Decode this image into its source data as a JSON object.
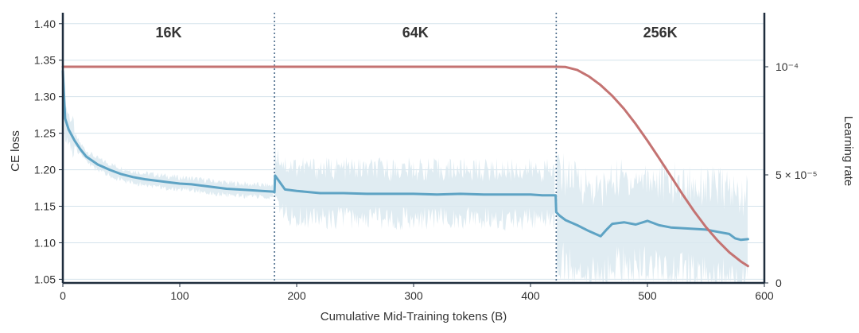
{
  "chart_data": {
    "type": "line",
    "title": "",
    "xlabel": "Cumulative Mid-Training tokens (B)",
    "ylabel": "CE loss",
    "ylabel_right": "Learning rate",
    "xlim": [
      0,
      600
    ],
    "ylim": [
      1.045,
      1.415
    ],
    "ylim_right": [
      0,
      0.000125
    ],
    "grid": "horizontal",
    "x_ticks": [
      0,
      100,
      200,
      300,
      400,
      500,
      600
    ],
    "x_tick_labels": [
      "0",
      "100",
      "200",
      "300",
      "400",
      "500",
      "600"
    ],
    "y_ticks": [
      1.05,
      1.1,
      1.15,
      1.2,
      1.25,
      1.3,
      1.35,
      1.4
    ],
    "y_tick_labels": [
      "1.05",
      "1.10",
      "1.15",
      "1.20",
      "1.25",
      "1.30",
      "1.35",
      "1.40"
    ],
    "y_right_ticks": [
      0,
      5e-05,
      0.0001
    ],
    "y_right_tick_labels": [
      "0",
      "5 × 10⁻⁵",
      "10⁻⁴"
    ],
    "phases": [
      {
        "label": "16K",
        "start": 0,
        "end": 181
      },
      {
        "label": "64K",
        "start": 181,
        "end": 422
      },
      {
        "label": "256K",
        "start": 422,
        "end": 600
      }
    ],
    "boundaries": [
      181,
      422
    ],
    "colors": {
      "loss": "#5ea3c4",
      "loss_band": "#dbe9f0",
      "lr": "#c47372",
      "boundary": "#4a6a8a",
      "frame": "#1f2d3d",
      "grid": "#d4e3ec"
    },
    "series": [
      {
        "axis": "left",
        "x": [
          0,
          2,
          5,
          10,
          15,
          20,
          30,
          40,
          50,
          60,
          70,
          80,
          90,
          100,
          110,
          120,
          130,
          140,
          150,
          160,
          170,
          180,
          181,
          181.5,
          190,
          200,
          220,
          240,
          260,
          280,
          300,
          320,
          340,
          360,
          380,
          400,
          410,
          421.5,
          422,
          425,
          430,
          440,
          450,
          460,
          465,
          470,
          480,
          490,
          500,
          510,
          520,
          530,
          540,
          550,
          560,
          570,
          575,
          580,
          586
        ],
        "values": [
          1.335,
          1.27,
          1.255,
          1.24,
          1.228,
          1.218,
          1.207,
          1.2,
          1.194,
          1.19,
          1.187,
          1.185,
          1.183,
          1.181,
          1.18,
          1.178,
          1.176,
          1.174,
          1.173,
          1.172,
          1.171,
          1.17,
          1.169,
          1.192,
          1.173,
          1.171,
          1.168,
          1.168,
          1.167,
          1.167,
          1.167,
          1.166,
          1.167,
          1.166,
          1.166,
          1.166,
          1.165,
          1.165,
          1.142,
          1.137,
          1.131,
          1.124,
          1.116,
          1.109,
          1.118,
          1.126,
          1.128,
          1.125,
          1.13,
          1.124,
          1.121,
          1.12,
          1.119,
          1.118,
          1.115,
          1.112,
          1.106,
          1.104,
          1.105
        ]
      },
      {
        "axis": "right",
        "x": [
          0,
          422,
          430,
          440,
          450,
          460,
          470,
          480,
          490,
          500,
          510,
          520,
          530,
          540,
          550,
          560,
          570,
          580,
          586
        ],
        "values": [
          0.0001,
          0.0001,
          9.99e-05,
          9.85e-05,
          9.55e-05,
          9.15e-05,
          8.65e-05,
          8.05e-05,
          7.35e-05,
          6.58e-05,
          5.77e-05,
          4.94e-05,
          4.1e-05,
          3.31e-05,
          2.59e-05,
          1.96e-05,
          1.42e-05,
          9.9e-06,
          7.8e-06
        ]
      }
    ]
  }
}
